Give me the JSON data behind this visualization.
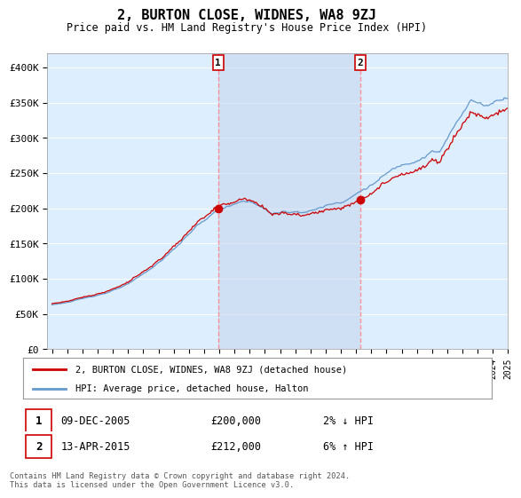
{
  "title": "2, BURTON CLOSE, WIDNES, WA8 9ZJ",
  "subtitle": "Price paid vs. HM Land Registry's House Price Index (HPI)",
  "background_color": "#ffffff",
  "plot_bg_color": "#ddeeff",
  "grid_color": "#ffffff",
  "hpi_line_color": "#6699cc",
  "price_line_color": "#cc0000",
  "dashed_line_color": "#ff8888",
  "shade_color": "#c8d8ee",
  "ylim": [
    0,
    420000
  ],
  "yticks": [
    0,
    50000,
    100000,
    150000,
    200000,
    250000,
    300000,
    350000,
    400000
  ],
  "ytick_labels": [
    "£0",
    "£50K",
    "£100K",
    "£150K",
    "£200K",
    "£250K",
    "£300K",
    "£350K",
    "£400K"
  ],
  "xstart_year": 1995,
  "xend_year": 2025,
  "sale1_year": 2005.92,
  "sale1_price": 200000,
  "sale1_date": "09-DEC-2005",
  "sale1_hpi_pct": "2% ↓ HPI",
  "sale2_year": 2015.28,
  "sale2_price": 212000,
  "sale2_date": "13-APR-2015",
  "sale2_hpi_pct": "6% ↑ HPI",
  "legend_line1": "2, BURTON CLOSE, WIDNES, WA8 9ZJ (detached house)",
  "legend_line2": "HPI: Average price, detached house, Halton",
  "footer": "Contains HM Land Registry data © Crown copyright and database right 2024.\nThis data is licensed under the Open Government Licence v3.0."
}
